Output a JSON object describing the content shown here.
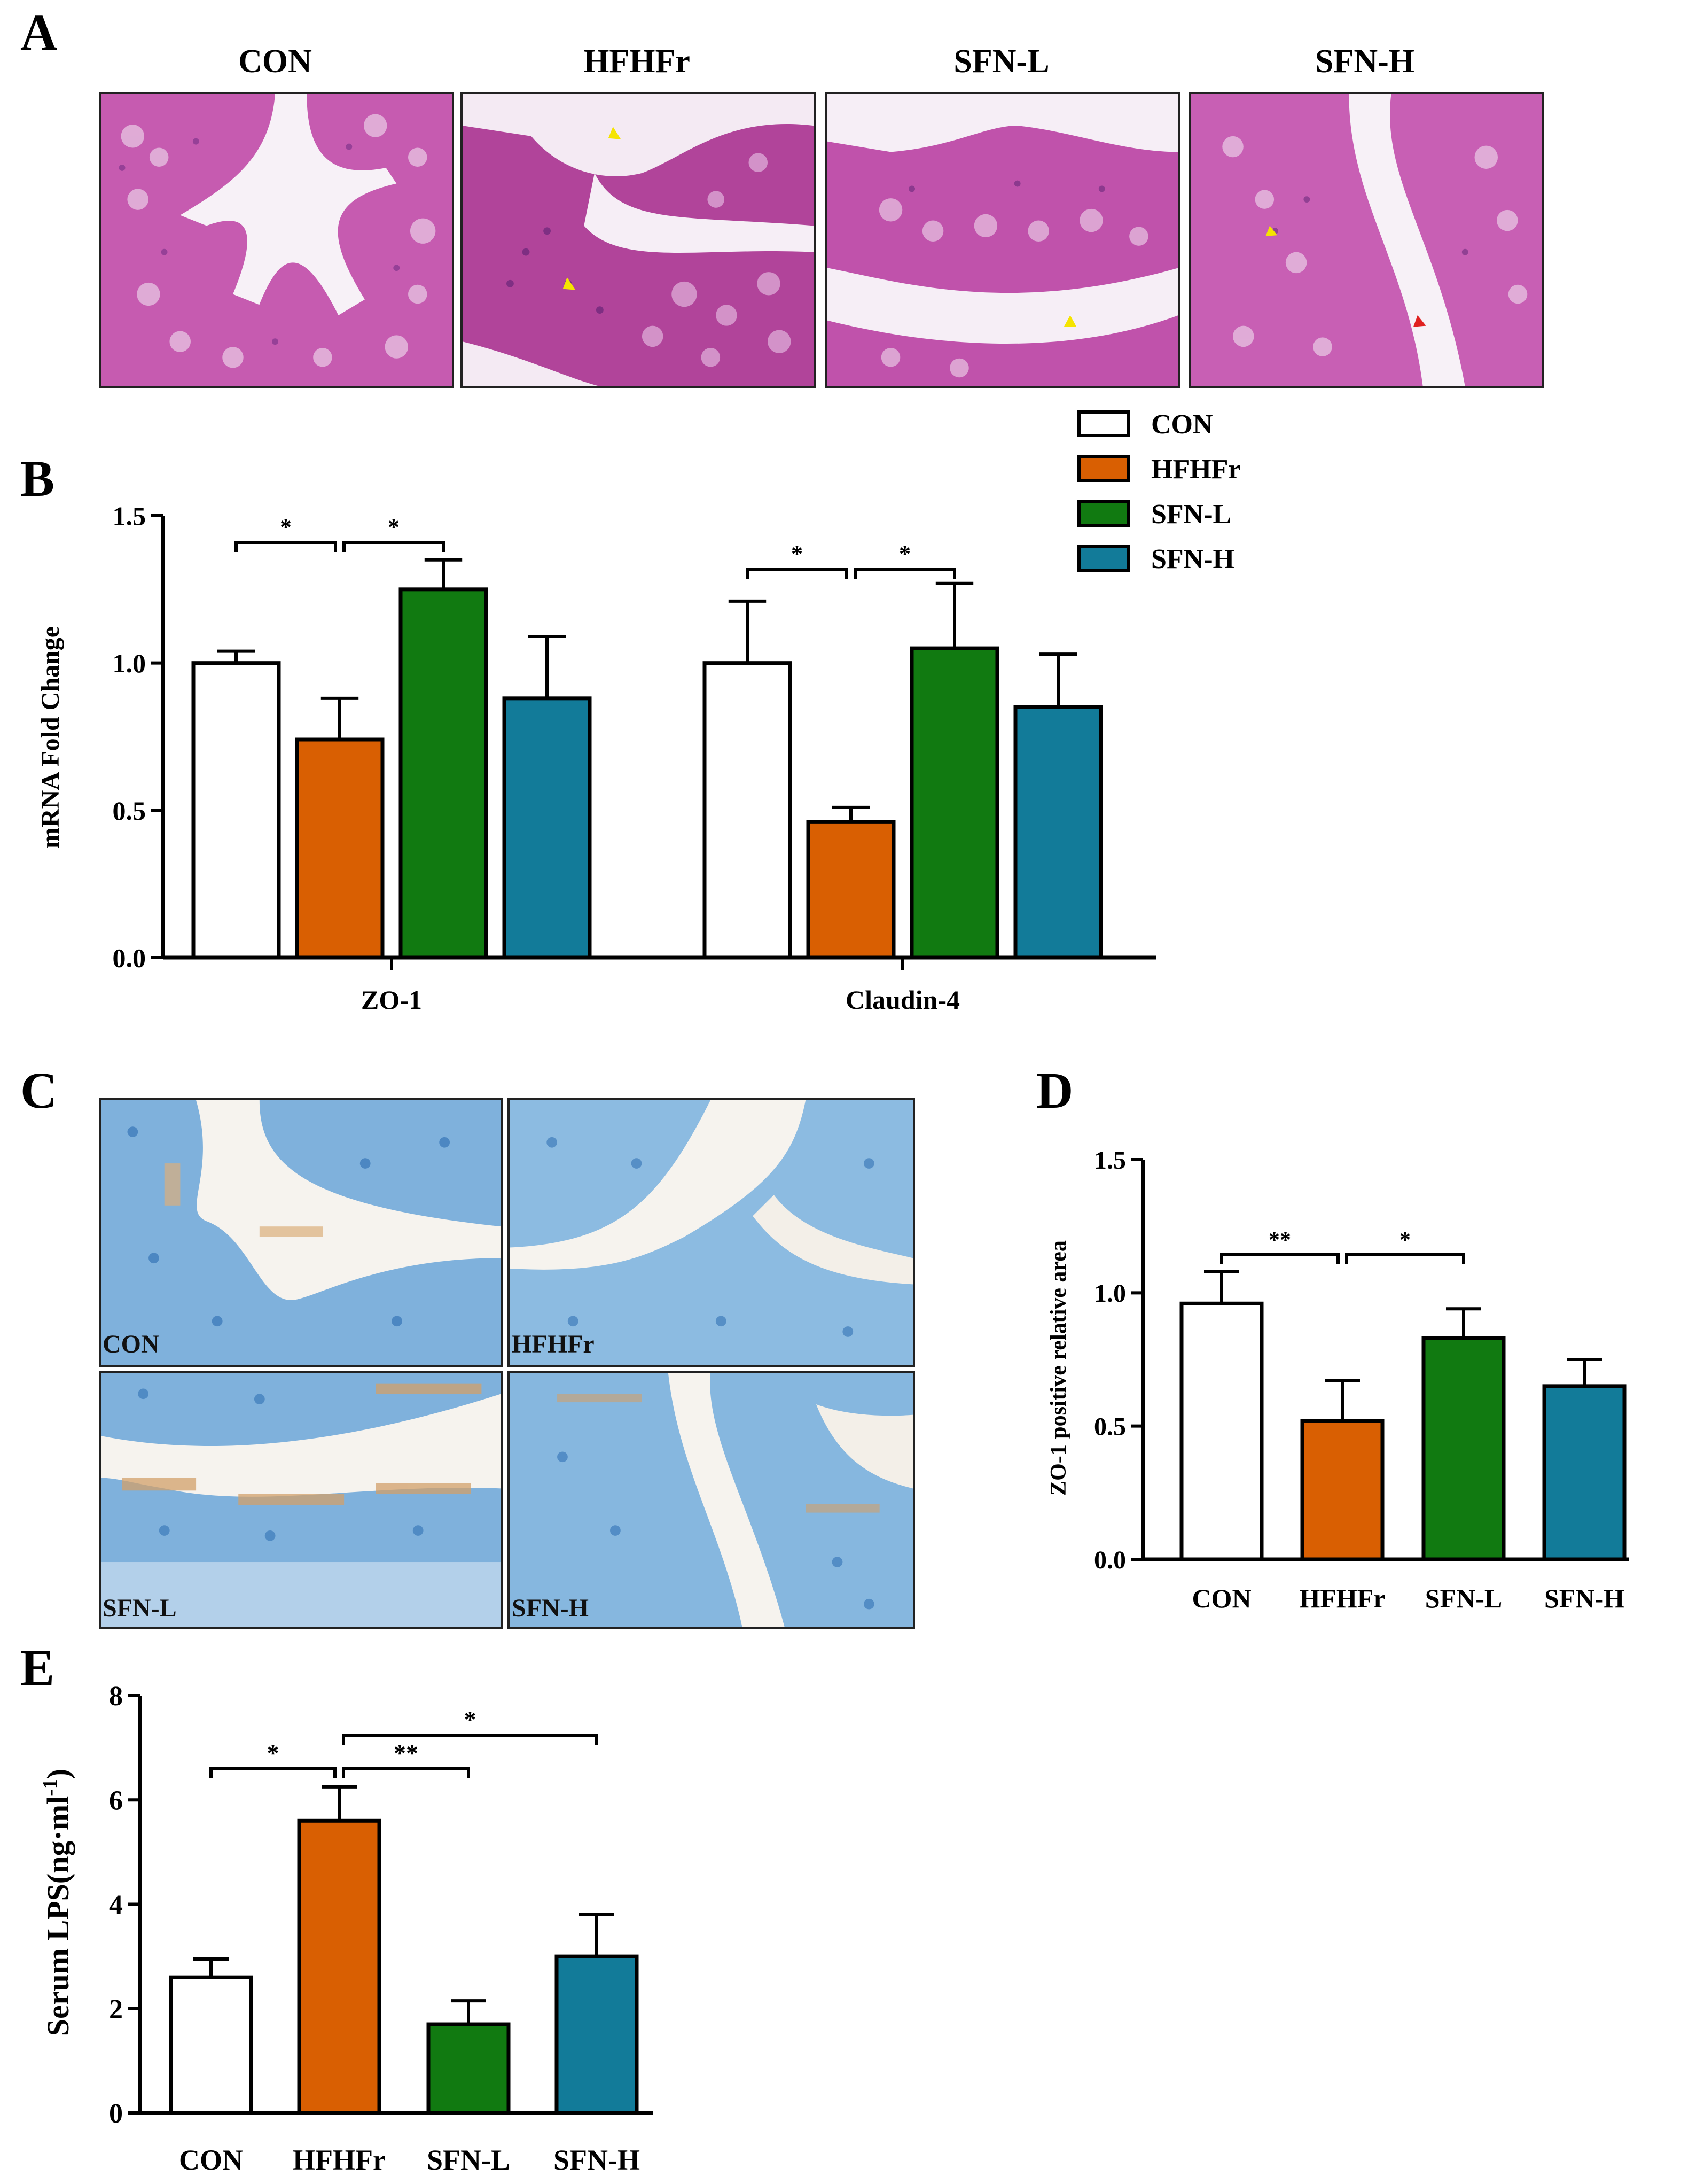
{
  "panel_letters": [
    "A",
    "B",
    "C",
    "D",
    "E"
  ],
  "panel_a": {
    "titles": [
      "CON",
      "HFHFr",
      "SFN-L",
      "SFN-H"
    ]
  },
  "panel_c": {
    "labels": [
      "CON",
      "HFHFr",
      "SFN-L",
      "SFN-H"
    ]
  },
  "colors": {
    "CON": "#ffffff",
    "HFHFr": "#d95f02",
    "SFN-L": "#117a11",
    "SFN-H": "#127b99",
    "he_stain": "#c34fa8",
    "ihc_stain": "#2f7fc4"
  },
  "chart_data": [
    {
      "panel": "B",
      "type": "bar",
      "categories": [
        "ZO-1",
        "Claudin-4"
      ],
      "series": [
        {
          "name": "CON",
          "values": [
            1.0,
            1.0
          ],
          "errors": [
            0.04,
            0.21
          ]
        },
        {
          "name": "HFHFr",
          "values": [
            0.74,
            0.46
          ],
          "errors": [
            0.14,
            0.05
          ]
        },
        {
          "name": "SFN-L",
          "values": [
            1.25,
            1.05
          ],
          "errors": [
            0.1,
            0.22
          ]
        },
        {
          "name": "SFN-H",
          "values": [
            0.88,
            0.85
          ],
          "errors": [
            0.21,
            0.18
          ]
        }
      ],
      "ylabel": "mRNA Fold Change",
      "ylim": [
        0,
        1.5
      ],
      "yticks": [
        "0.0",
        "0.5",
        "1.0",
        "1.5"
      ],
      "legend": [
        "CON",
        "HFHFr",
        "SFN-L",
        "SFN-H"
      ],
      "legend_position": "top-right",
      "significance": [
        {
          "category": "ZO-1",
          "from": "CON",
          "to": "HFHFr",
          "mark": "*"
        },
        {
          "category": "ZO-1",
          "from": "HFHFr",
          "to": "SFN-L",
          "mark": "*"
        },
        {
          "category": "Claudin-4",
          "from": "CON",
          "to": "HFHFr",
          "mark": "*"
        },
        {
          "category": "Claudin-4",
          "from": "HFHFr",
          "to": "SFN-L",
          "mark": "*"
        }
      ]
    },
    {
      "panel": "D",
      "type": "bar",
      "categories": [
        "CON",
        "HFHFr",
        "SFN-L",
        "SFN-H"
      ],
      "values": [
        0.96,
        0.52,
        0.83,
        0.65
      ],
      "errors": [
        0.12,
        0.15,
        0.11,
        0.1
      ],
      "ylabel": "ZO-1 positive relative area",
      "ylim": [
        0,
        1.5
      ],
      "yticks": [
        "0.0",
        "0.5",
        "1.0",
        "1.5"
      ],
      "significance": [
        {
          "from": "CON",
          "to": "HFHFr",
          "mark": "**"
        },
        {
          "from": "HFHFr",
          "to": "SFN-L",
          "mark": "*"
        }
      ]
    },
    {
      "panel": "E",
      "type": "bar",
      "categories": [
        "CON",
        "HFHFr",
        "SFN-L",
        "SFN-H"
      ],
      "values": [
        2.6,
        5.6,
        1.7,
        3.0
      ],
      "errors": [
        0.35,
        0.65,
        0.45,
        0.8
      ],
      "ylabel": "Serum LPS(ng·ml",
      "ylabel_superscript": "-1",
      "ylabel_close": ")",
      "ylim": [
        0,
        8
      ],
      "yticks": [
        "0",
        "2",
        "4",
        "6",
        "8"
      ],
      "significance": [
        {
          "from": "CON",
          "to": "HFHFr",
          "mark": "*"
        },
        {
          "from": "HFHFr",
          "to": "SFN-L",
          "mark": "**"
        },
        {
          "from": "HFHFr",
          "to": "SFN-H",
          "mark": "*"
        }
      ]
    }
  ]
}
